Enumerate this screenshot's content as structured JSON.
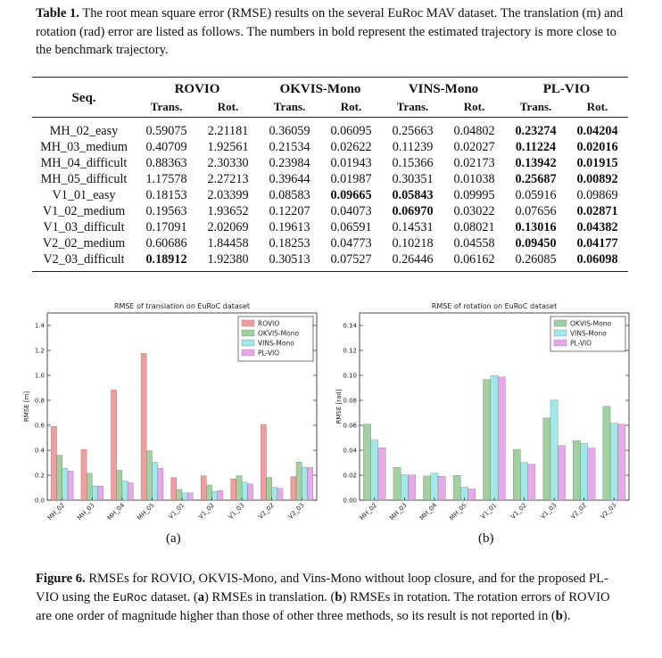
{
  "table_caption": {
    "label": "Table 1.",
    "text": "The root mean square error (RMSE) results on the several EuRoc MAV dataset. The translation (m) and rotation (rad) error are listed as follows. The numbers in bold represent the estimated trajectory is more close to the benchmark trajectory."
  },
  "table": {
    "seq_header": "Seq.",
    "methods": [
      "ROVIO",
      "OKVIS-Mono",
      "VINS-Mono",
      "PL-VIO"
    ],
    "sub_headers": [
      "Trans.",
      "Rot."
    ],
    "rows": [
      {
        "seq": "MH_02_easy",
        "cells": [
          [
            "0.59075",
            false
          ],
          [
            "2.21181",
            false
          ],
          [
            "0.36059",
            false
          ],
          [
            "0.06095",
            false
          ],
          [
            "0.25663",
            false
          ],
          [
            "0.04802",
            false
          ],
          [
            "0.23274",
            true
          ],
          [
            "0.04204",
            true
          ]
        ]
      },
      {
        "seq": "MH_03_medium",
        "cells": [
          [
            "0.40709",
            false
          ],
          [
            "1.92561",
            false
          ],
          [
            "0.21534",
            false
          ],
          [
            "0.02622",
            false
          ],
          [
            "0.11239",
            false
          ],
          [
            "0.02027",
            false
          ],
          [
            "0.11224",
            true
          ],
          [
            "0.02016",
            true
          ]
        ]
      },
      {
        "seq": "MH_04_difficult",
        "cells": [
          [
            "0.88363",
            false
          ],
          [
            "2.30330",
            false
          ],
          [
            "0.23984",
            false
          ],
          [
            "0.01943",
            false
          ],
          [
            "0.15366",
            false
          ],
          [
            "0.02173",
            false
          ],
          [
            "0.13942",
            true
          ],
          [
            "0.01915",
            true
          ]
        ]
      },
      {
        "seq": "MH_05_difficult",
        "cells": [
          [
            "1.17578",
            false
          ],
          [
            "2.27213",
            false
          ],
          [
            "0.39644",
            false
          ],
          [
            "0.01987",
            false
          ],
          [
            "0.30351",
            false
          ],
          [
            "0.01038",
            false
          ],
          [
            "0.25687",
            true
          ],
          [
            "0.00892",
            true
          ]
        ]
      },
      {
        "seq": "V1_01_easy",
        "cells": [
          [
            "0.18153",
            false
          ],
          [
            "2.03399",
            false
          ],
          [
            "0.08583",
            false
          ],
          [
            "0.09665",
            true
          ],
          [
            "0.05843",
            true
          ],
          [
            "0.09995",
            false
          ],
          [
            "0.05916",
            false
          ],
          [
            "0.09869",
            false
          ]
        ]
      },
      {
        "seq": "V1_02_medium",
        "cells": [
          [
            "0.19563",
            false
          ],
          [
            "1.93652",
            false
          ],
          [
            "0.12207",
            false
          ],
          [
            "0.04073",
            false
          ],
          [
            "0.06970",
            true
          ],
          [
            "0.03022",
            false
          ],
          [
            "0.07656",
            false
          ],
          [
            "0.02871",
            true
          ]
        ]
      },
      {
        "seq": "V1_03_difficult",
        "cells": [
          [
            "0.17091",
            false
          ],
          [
            "2.02069",
            false
          ],
          [
            "0.19613",
            false
          ],
          [
            "0.06591",
            false
          ],
          [
            "0.14531",
            false
          ],
          [
            "0.08021",
            false
          ],
          [
            "0.13016",
            true
          ],
          [
            "0.04382",
            true
          ]
        ]
      },
      {
        "seq": "V2_02_medium",
        "cells": [
          [
            "0.60686",
            false
          ],
          [
            "1.84458",
            false
          ],
          [
            "0.18253",
            false
          ],
          [
            "0.04773",
            false
          ],
          [
            "0.10218",
            false
          ],
          [
            "0.04558",
            false
          ],
          [
            "0.09450",
            true
          ],
          [
            "0.04177",
            true
          ]
        ]
      },
      {
        "seq": "V2_03_difficult",
        "cells": [
          [
            "0.18912",
            true
          ],
          [
            "1.92380",
            false
          ],
          [
            "0.30513",
            false
          ],
          [
            "0.07527",
            false
          ],
          [
            "0.26446",
            false
          ],
          [
            "0.06162",
            false
          ],
          [
            "0.26085",
            false
          ],
          [
            "0.06098",
            true
          ]
        ]
      }
    ]
  },
  "colors": {
    "ROVIO": "#f08c8c",
    "OKVIS-Mono": "#90c890",
    "VINS-Mono": "#90e4e4",
    "PL-VIO": "#e49ae8"
  },
  "chart_data": [
    {
      "type": "bar",
      "title": "RMSE of translation on EuRoC dataset",
      "ylabel": "RMSE [m]",
      "xlabel": "",
      "ylim": [
        0,
        1.5
      ],
      "yticks": [
        "0.0",
        "0.2",
        "0.4",
        "0.6",
        "0.8",
        "1.0",
        "1.2",
        "1.4"
      ],
      "categories": [
        "MH_02",
        "MH_03",
        "MH_04",
        "MH_05",
        "V1_01",
        "V1_02",
        "V1_03",
        "V2_02",
        "V2_03"
      ],
      "legend_position": "top-right",
      "series": [
        {
          "name": "ROVIO",
          "values": [
            0.59075,
            0.40709,
            0.88363,
            1.17578,
            0.18153,
            0.19563,
            0.17091,
            0.60686,
            0.18912
          ]
        },
        {
          "name": "OKVIS-Mono",
          "values": [
            0.36059,
            0.21534,
            0.23984,
            0.39644,
            0.08583,
            0.12207,
            0.19613,
            0.18253,
            0.30513
          ]
        },
        {
          "name": "VINS-Mono",
          "values": [
            0.25663,
            0.11239,
            0.15366,
            0.30351,
            0.05843,
            0.0697,
            0.14531,
            0.10218,
            0.26446
          ]
        },
        {
          "name": "PL-VIO",
          "values": [
            0.23274,
            0.11224,
            0.13942,
            0.25687,
            0.05916,
            0.07656,
            0.13016,
            0.0945,
            0.26085
          ]
        }
      ]
    },
    {
      "type": "bar",
      "title": "RMSE of rotation on EuRoC dataset",
      "ylabel": "RMSE [rad]",
      "xlabel": "",
      "ylim": [
        0,
        0.15
      ],
      "yticks": [
        "0.00",
        "0.02",
        "0.04",
        "0.06",
        "0.08",
        "0.10",
        "0.12",
        "0.14"
      ],
      "categories": [
        "MH_02",
        "MH_03",
        "MH_04",
        "MH_05",
        "V1_01",
        "V1_02",
        "V1_03",
        "V2_02",
        "V2_03"
      ],
      "legend_position": "top-right",
      "series": [
        {
          "name": "OKVIS-Mono",
          "values": [
            0.06095,
            0.02622,
            0.01943,
            0.01987,
            0.09665,
            0.04073,
            0.06591,
            0.04773,
            0.07527
          ]
        },
        {
          "name": "VINS-Mono",
          "values": [
            0.04802,
            0.02027,
            0.02173,
            0.01038,
            0.09995,
            0.03022,
            0.08021,
            0.04558,
            0.06162
          ]
        },
        {
          "name": "PL-VIO",
          "values": [
            0.04204,
            0.02016,
            0.01915,
            0.00892,
            0.09869,
            0.02871,
            0.04382,
            0.04177,
            0.06098
          ]
        }
      ]
    }
  ],
  "subfigure_labels": [
    "(a)",
    "(b)"
  ],
  "figure_caption": {
    "label": "Figure 6.",
    "text_1": " RMSEs for ROVIO, OKVIS-Mono, and Vins-Mono without loop closure, and for the proposed PL-VIO using the ",
    "dataset_name": "EuRoc",
    "text_2": " dataset. (",
    "ref_a": "a",
    "text_3": ") RMSEs in translation. (",
    "ref_b": "b",
    "text_4": ") RMSEs in rotation. The rotation errors of ROVIO are one order of magnitude higher than those of other three methods, so its result is not reported in (",
    "ref_b2": "b",
    "text_5": ")."
  }
}
